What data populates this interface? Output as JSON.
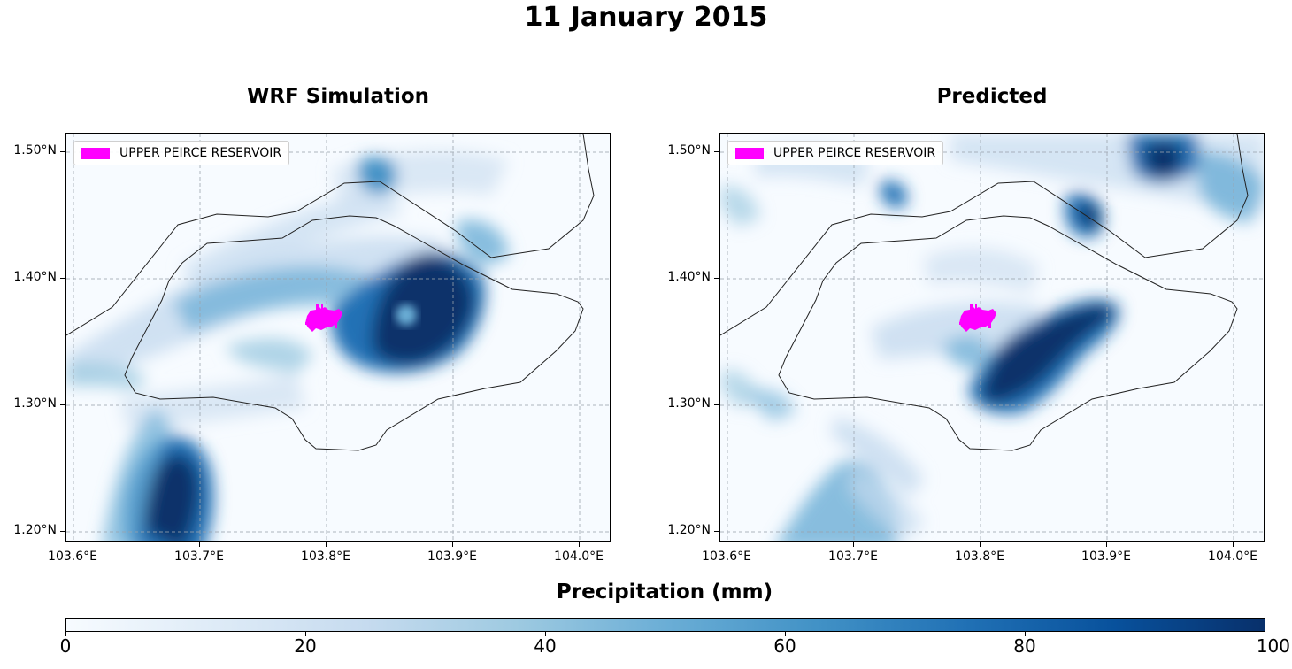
{
  "figure": {
    "title": "11 January 2015"
  },
  "colorbar": {
    "label": "Precipitation (mm)",
    "ticks": [
      "0",
      "20",
      "40",
      "60",
      "80",
      "100"
    ],
    "colormap": "Blues",
    "range": [
      0,
      100
    ]
  },
  "panels": [
    {
      "title": "WRF Simulation",
      "legend": {
        "label": "UPPER PEIRCE RESERVOIR",
        "color": "#ff00ff"
      },
      "lon_ticks": [
        "103.6°E",
        "103.7°E",
        "103.8°E",
        "103.9°E",
        "104.0°E"
      ],
      "lat_ticks": [
        "1.50°N",
        "1.40°N",
        "1.30°N",
        "1.20°N"
      ]
    },
    {
      "title": "Predicted",
      "legend": {
        "label": "UPPER PEIRCE RESERVOIR",
        "color": "#ff00ff"
      },
      "lon_ticks": [
        "103.6°E",
        "103.7°E",
        "103.8°E",
        "103.9°E",
        "104.0°E"
      ],
      "lat_ticks": [
        "1.50°N",
        "1.40°N",
        "1.30°N",
        "1.20°N"
      ]
    }
  ]
}
